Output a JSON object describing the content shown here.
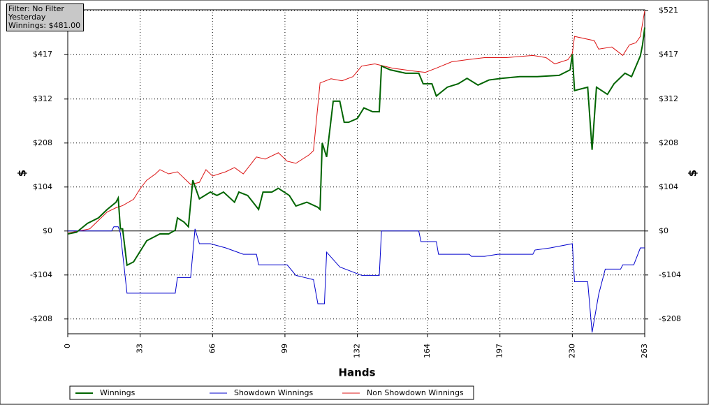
{
  "info": [
    "Filter: No Filter",
    "Yesterday",
    "Winnings: $481.00"
  ],
  "chart_data": {
    "type": "line",
    "x_label": "Hands",
    "y_label": "$",
    "y2_label": "$",
    "xlim": [
      0,
      263
    ],
    "xticks": [
      0,
      33,
      66,
      99,
      132,
      164,
      197,
      230,
      263
    ],
    "ylim": [
      -243,
      523
    ],
    "yticks": [
      {
        "value": -208,
        "label": "-$208"
      },
      {
        "value": -104,
        "label": "-$104"
      },
      {
        "value": 0,
        "label": "$0"
      },
      {
        "value": 104,
        "label": "$104"
      },
      {
        "value": 208,
        "label": "$208"
      },
      {
        "value": 312,
        "label": "$312"
      },
      {
        "value": 417,
        "label": "$417"
      },
      {
        "value": 521,
        "label": "$521"
      }
    ],
    "y2lim": [
      -243,
      523
    ],
    "y2ticks": [
      {
        "value": -208,
        "label": "-$208"
      },
      {
        "value": -104,
        "label": "-$104"
      },
      {
        "value": 0,
        "label": "$0"
      },
      {
        "value": 104,
        "label": "$104"
      },
      {
        "value": 208,
        "label": "$208"
      },
      {
        "value": 312,
        "label": "$312"
      },
      {
        "value": 417,
        "label": "$417"
      },
      {
        "value": 521,
        "label": "$521"
      }
    ],
    "grid": true,
    "series": [
      {
        "name": "Winnings",
        "color": "#006400",
        "x": [
          0,
          4,
          9,
          14,
          18,
          22,
          23,
          24,
          25,
          27,
          30,
          33,
          36,
          39,
          42,
          46,
          49,
          50,
          53,
          55,
          57,
          60,
          65,
          68,
          71,
          76,
          78,
          82,
          87,
          89,
          93,
          96,
          101,
          104,
          109,
          114,
          115,
          116,
          118,
          121,
          124,
          126,
          128,
          132,
          135,
          139,
          142,
          143,
          147,
          154,
          160,
          162,
          166,
          168,
          173,
          178,
          182,
          187,
          192,
          198,
          206,
          214,
          224,
          229,
          230,
          231,
          237,
          239,
          241,
          246,
          249,
          254,
          257,
          261,
          262,
          263
        ],
        "values": [
          -7,
          -3,
          18,
          31,
          51,
          68,
          78,
          5,
          5,
          -81,
          -73,
          -48,
          -23,
          -15,
          -7,
          -7,
          2,
          31,
          21,
          10,
          120,
          76,
          92,
          84,
          92,
          68,
          92,
          84,
          51,
          92,
          92,
          101,
          84,
          59,
          68,
          56,
          51,
          208,
          175,
          307,
          307,
          257,
          257,
          266,
          291,
          282,
          282,
          390,
          381,
          373,
          373,
          348,
          348,
          319,
          340,
          348,
          361,
          345,
          357,
          361,
          365,
          365,
          368,
          381,
          418,
          332,
          340,
          192,
          340,
          323,
          348,
          373,
          365,
          414,
          440,
          481
        ]
      },
      {
        "name": "Showdown Winnings",
        "color": "#0000cd",
        "x": [
          0,
          20,
          21,
          23,
          24,
          27,
          49,
          50,
          56,
          58,
          60,
          65,
          72,
          80,
          86,
          87,
          100,
          104,
          108,
          112,
          114,
          117,
          118,
          124,
          134,
          142,
          143,
          160,
          161,
          168,
          169,
          183,
          184,
          190,
          196,
          212,
          213,
          220,
          230,
          231,
          237,
          239,
          242,
          245,
          252,
          253,
          258,
          261,
          263
        ],
        "values": [
          0,
          0,
          10,
          10,
          -5,
          -147,
          -147,
          -110,
          -110,
          5,
          -30,
          -30,
          -40,
          -55,
          -55,
          -80,
          -80,
          -105,
          -110,
          -115,
          -172,
          -172,
          -50,
          -85,
          -105,
          -105,
          0,
          0,
          -25,
          -25,
          -55,
          -55,
          -60,
          -60,
          -55,
          -55,
          -45,
          -40,
          -30,
          -120,
          -120,
          -240,
          -150,
          -90,
          -90,
          -80,
          -80,
          -40,
          -40
        ]
      },
      {
        "name": "Non Showdown Winnings",
        "color": "#dc1414",
        "x": [
          0,
          10,
          14,
          18,
          22,
          25,
          30,
          33,
          36,
          40,
          42,
          46,
          50,
          53,
          56,
          60,
          63,
          66,
          72,
          76,
          80,
          86,
          90,
          96,
          100,
          104,
          110,
          112,
          115,
          120,
          125,
          130,
          134,
          140,
          148,
          158,
          163,
          168,
          175,
          182,
          190,
          200,
          212,
          218,
          222,
          228,
          230,
          231,
          240,
          242,
          248,
          253,
          256,
          259,
          261,
          263
        ],
        "values": [
          -5,
          5,
          25,
          45,
          55,
          60,
          75,
          100,
          120,
          135,
          145,
          135,
          140,
          125,
          110,
          115,
          145,
          130,
          140,
          150,
          135,
          175,
          170,
          185,
          165,
          160,
          180,
          190,
          350,
          360,
          355,
          365,
          390,
          395,
          385,
          378,
          375,
          385,
          400,
          405,
          410,
          410,
          415,
          410,
          395,
          405,
          420,
          460,
          450,
          430,
          435,
          415,
          440,
          445,
          460,
          521
        ]
      }
    ]
  }
}
